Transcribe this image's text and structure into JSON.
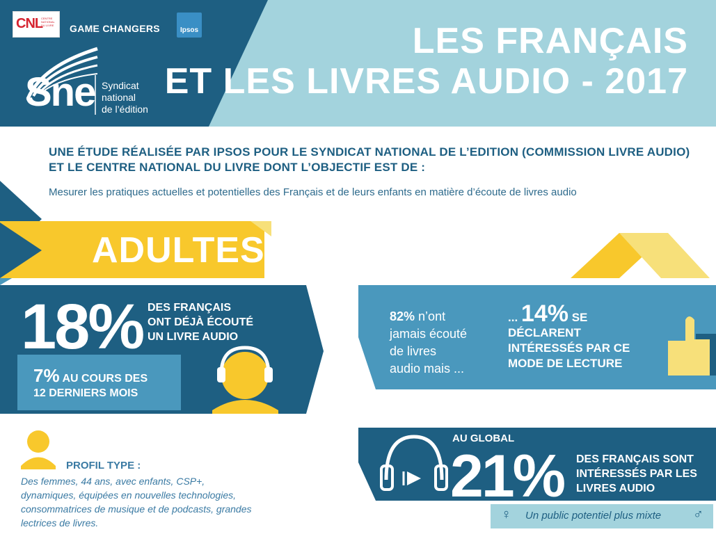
{
  "header": {
    "logo_cnl": "CNL",
    "logo_cnl_sub": "CENTRE NATIONAL DU LIVRE",
    "game_changers": "GAME CHANGERS",
    "ipsos": "Ipsos",
    "sne_word": "Sne",
    "sne_sub_1": "Syndicat",
    "sne_sub_2": "national",
    "sne_sub_3": "de l’édition",
    "title_line1": "LES FRANÇAIS",
    "title_line2": "ET LES LIVRES AUDIO - 2017"
  },
  "intro": {
    "title_line1": "UNE ÉTUDE RÉALISÉE PAR IPSOS POUR LE SYNDICAT NATIONAL DE L’EDITION (COMMISSION LIVRE AUDIO)",
    "title_line2": "ET LE CENTRE NATIONAL DU LIVRE DONT L’OBJECTIF EST DE :",
    "subtitle": "Mesurer les pratiques actuelles et potentielles des Français et de leurs enfants en matière d’écoute de livres audio"
  },
  "adults": {
    "banner": "ADULTES",
    "stat1_value": "18%",
    "stat1_line1": "DES FRANÇAIS",
    "stat1_line2": "ONT DÉJÀ ÉCOUTÉ",
    "stat1_line3": "UN LIVRE AUDIO",
    "stat2_value": "7%",
    "stat2_line1": "AU COURS DES",
    "stat2_line2": "12 DERNIERS MOIS",
    "stat3_value": "82%",
    "stat3_line1": "n’ont",
    "stat3_line2": "jamais écouté",
    "stat3_line3": "de livres",
    "stat3_line4": "audio mais ...",
    "stat4_prefix": "... ",
    "stat4_value": "14%",
    "stat4_line1": "SE",
    "stat4_line2": "DÉCLARENT",
    "stat4_line3": "INTÉRESSÉS PAR CE",
    "stat4_line4": "MODE DE LECTURE"
  },
  "profile": {
    "title": "PROFIL TYPE :",
    "line1": "Des femmes, 44 ans, avec enfants, CSP+,",
    "line2": "dynamiques, équipées en nouvelles technologies,",
    "line3": "consommatrices de musique et de podcasts, grandes",
    "line4": "lectrices de livres."
  },
  "global": {
    "label": "AU GLOBAL",
    "value": "21%",
    "line1": "DES FRANÇAIS SONT",
    "line2": "INTÉRESSÉS PAR LES",
    "line3": "LIVRES AUDIO",
    "mixte": "Un public potentiel plus mixte",
    "female_symbol": "♀",
    "male_symbol": "♂"
  },
  "colors": {
    "dark_blue": "#1e5f82",
    "mid_blue": "#4a98bd",
    "light_blue": "#a3d3dd",
    "yellow": "#f8c82c",
    "light_yellow": "#f7e07a"
  }
}
